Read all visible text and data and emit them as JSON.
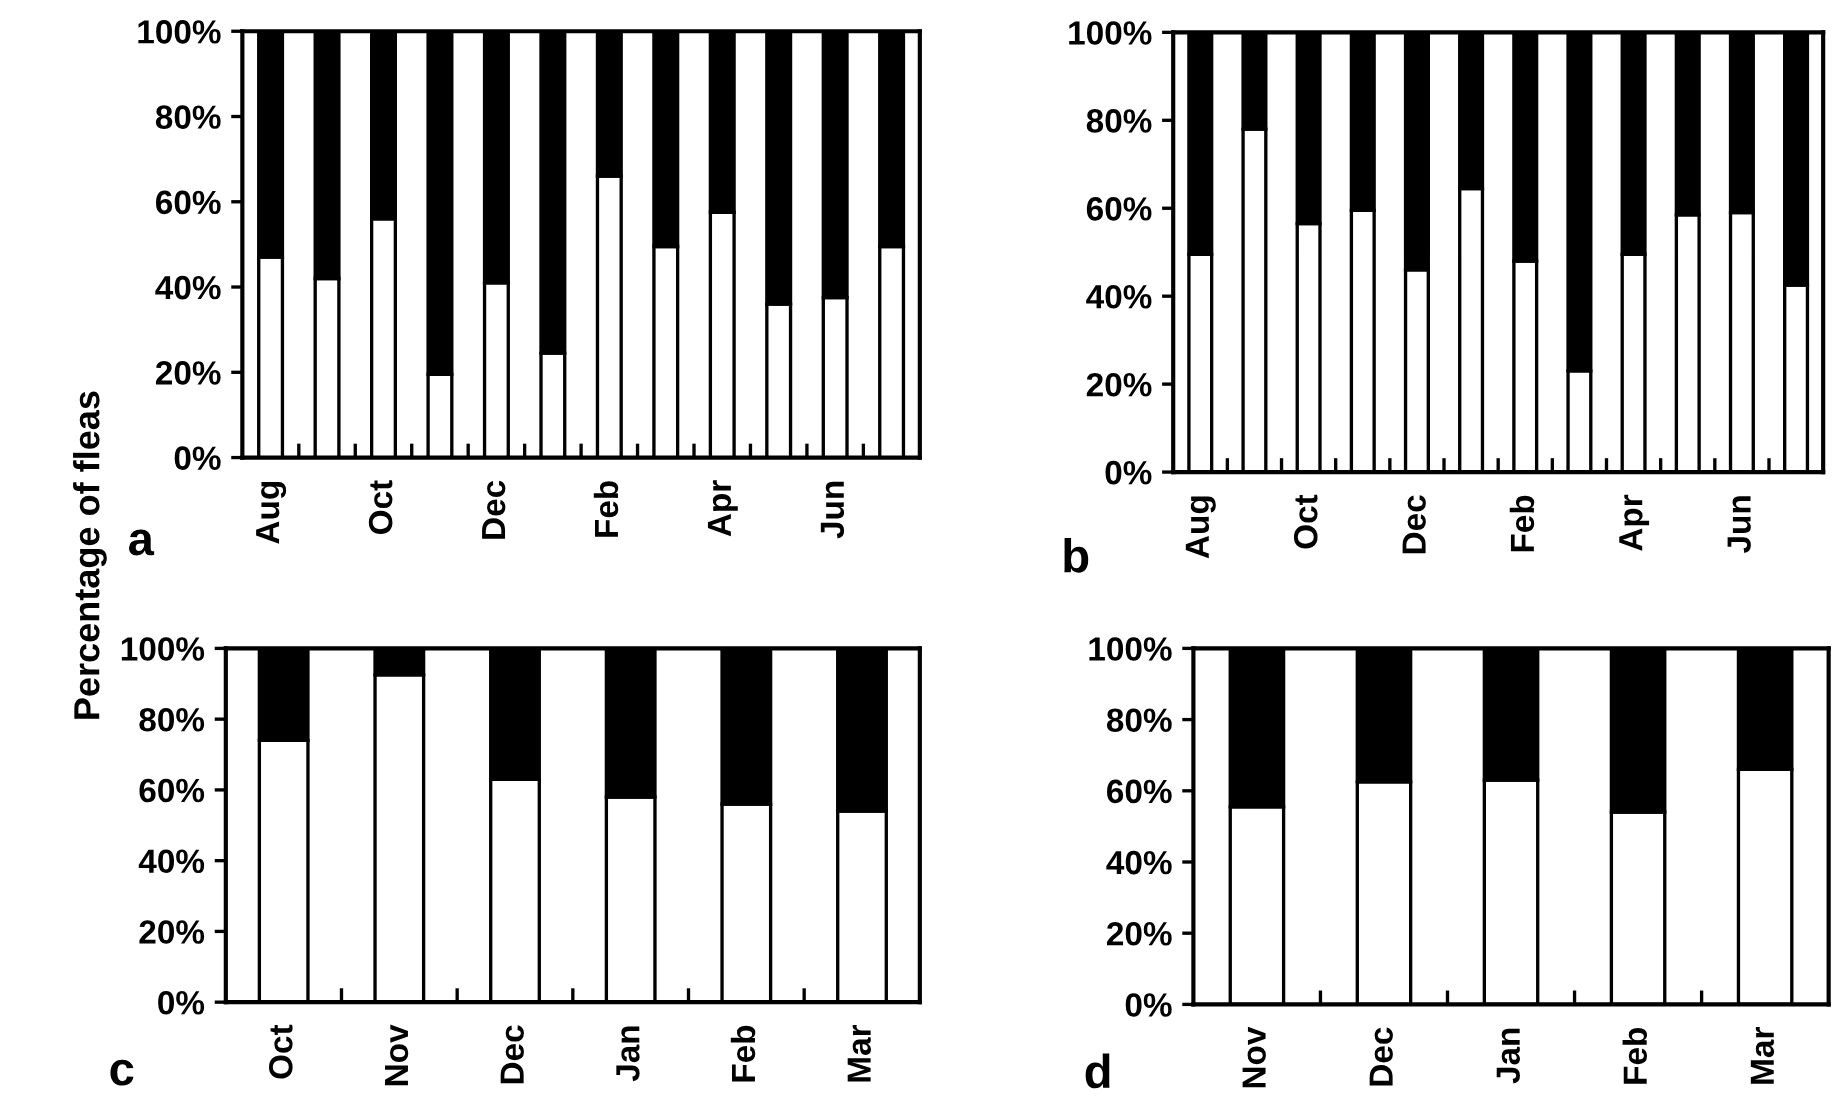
{
  "chart_data": [
    {
      "type": "bar",
      "stacked": true,
      "ylabel": "Percentage of fleas",
      "annotations": [
        "a"
      ],
      "categories": [
        "Aug",
        null,
        "Oct",
        null,
        "Dec",
        null,
        "Feb",
        null,
        "Apr",
        null,
        "Jun",
        null
      ],
      "series": [
        {
          "color": "#ffffff",
          "values": [
            47,
            42,
            56,
            19.5,
            41,
            24.5,
            66,
            49.5,
            57.5,
            36,
            37.5,
            49.5
          ]
        },
        {
          "color": "#000000",
          "values": [
            53,
            58,
            44,
            80.5,
            59,
            75.5,
            34,
            50.5,
            42.5,
            64,
            62.5,
            50.5
          ]
        }
      ],
      "ylim": [
        0,
        100
      ],
      "yticks": [
        {
          "value": 0,
          "label": "0%"
        },
        {
          "value": 20,
          "label": "20%"
        },
        {
          "value": 40,
          "label": "40%"
        },
        {
          "value": 60,
          "label": "60%"
        },
        {
          "value": 80,
          "label": "80%"
        },
        {
          "value": 100,
          "label": "100%"
        }
      ],
      "grid": false,
      "legend": false
    },
    {
      "type": "bar",
      "stacked": true,
      "annotations": [
        "b"
      ],
      "categories": [
        "Aug",
        null,
        "Oct",
        null,
        "Dec",
        null,
        "Feb",
        null,
        "Apr",
        null,
        "Jun",
        null
      ],
      "series": [
        {
          "color": "#ffffff",
          "values": [
            49.5,
            78,
            56.5,
            59.5,
            46,
            64.5,
            48,
            23,
            49.5,
            58.5,
            59,
            42.5
          ]
        },
        {
          "color": "#000000",
          "values": [
            50.5,
            22,
            43.5,
            40.5,
            54,
            35.5,
            52,
            77,
            50.5,
            41.5,
            41,
            57.5
          ]
        }
      ],
      "ylim": [
        0,
        100
      ],
      "yticks": [
        {
          "value": 0,
          "label": "0%"
        },
        {
          "value": 20,
          "label": "20%"
        },
        {
          "value": 40,
          "label": "40%"
        },
        {
          "value": 60,
          "label": "60%"
        },
        {
          "value": 80,
          "label": "80%"
        },
        {
          "value": 100,
          "label": "100%"
        }
      ],
      "grid": false,
      "legend": false
    },
    {
      "type": "bar",
      "stacked": true,
      "annotations": [
        "c"
      ],
      "categories": [
        "Oct",
        "Nov",
        "Dec",
        "Jan",
        "Feb",
        "Mar"
      ],
      "series": [
        {
          "color": "#ffffff",
          "values": [
            74,
            92.5,
            63,
            58,
            56,
            54
          ]
        },
        {
          "color": "#000000",
          "values": [
            26,
            7.5,
            37,
            42,
            44,
            46
          ]
        }
      ],
      "ylim": [
        0,
        100
      ],
      "yticks": [
        {
          "value": 0,
          "label": "0%"
        },
        {
          "value": 20,
          "label": "20%"
        },
        {
          "value": 40,
          "label": "40%"
        },
        {
          "value": 60,
          "label": "60%"
        },
        {
          "value": 80,
          "label": "80%"
        },
        {
          "value": 100,
          "label": "100%"
        }
      ],
      "grid": false,
      "legend": false
    },
    {
      "type": "bar",
      "stacked": true,
      "annotations": [
        "d"
      ],
      "categories": [
        "Nov",
        "Dec",
        "Jan",
        "Feb",
        "Mar"
      ],
      "series": [
        {
          "color": "#ffffff",
          "values": [
            55.5,
            62.5,
            63,
            54,
            66
          ]
        },
        {
          "color": "#000000",
          "values": [
            44.5,
            37.5,
            37,
            46,
            34
          ]
        }
      ],
      "ylim": [
        0,
        100
      ],
      "yticks": [
        {
          "value": 0,
          "label": "0%"
        },
        {
          "value": 20,
          "label": "20%"
        },
        {
          "value": 40,
          "label": "40%"
        },
        {
          "value": 60,
          "label": "60%"
        },
        {
          "value": 80,
          "label": "80%"
        },
        {
          "value": 100,
          "label": "100%"
        }
      ],
      "grid": false,
      "legend": false
    }
  ]
}
